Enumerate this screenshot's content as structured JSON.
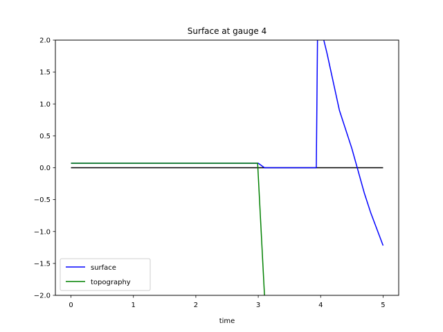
{
  "chart_data": {
    "type": "line",
    "title": "Surface at gauge 4",
    "xlabel": "time",
    "ylabel": "",
    "xlim": [
      -0.25,
      5.25
    ],
    "ylim": [
      -2.0,
      2.0
    ],
    "xticks": [
      0,
      1,
      2,
      3,
      4,
      5
    ],
    "yticks": [
      -2.0,
      -1.5,
      -1.0,
      -0.5,
      0.0,
      0.5,
      1.0,
      1.5,
      2.0
    ],
    "xtick_labels": [
      "0",
      "1",
      "2",
      "3",
      "4",
      "5"
    ],
    "ytick_labels": [
      "−2.0",
      "−1.5",
      "−1.0",
      "−0.5",
      "0.0",
      "0.5",
      "1.0",
      "1.5",
      "2.0"
    ],
    "legend_position": "lower-left",
    "grid": false,
    "series": [
      {
        "name": "surface",
        "color": "#0000ff",
        "x": [
          0,
          3.0,
          3.1,
          3.2,
          3.5,
          3.93,
          3.95,
          3.97,
          4.05,
          4.1,
          4.3,
          4.5,
          4.6,
          4.7,
          4.8,
          5.0
        ],
        "y": [
          0.07,
          0.07,
          0.0,
          0.0,
          0.0,
          0.0,
          2.1,
          2.2,
          2.0,
          1.8,
          0.9,
          0.3,
          -0.05,
          -0.4,
          -0.7,
          -1.22
        ]
      },
      {
        "name": "topography",
        "color": "#008000",
        "x": [
          0,
          2.99,
          3.1,
          3.12
        ],
        "y": [
          0.07,
          0.07,
          -2.0,
          -2.3
        ]
      },
      {
        "name": "",
        "color": "#000000",
        "x": [
          0,
          5.0
        ],
        "y": [
          0.0,
          0.0
        ]
      }
    ]
  }
}
